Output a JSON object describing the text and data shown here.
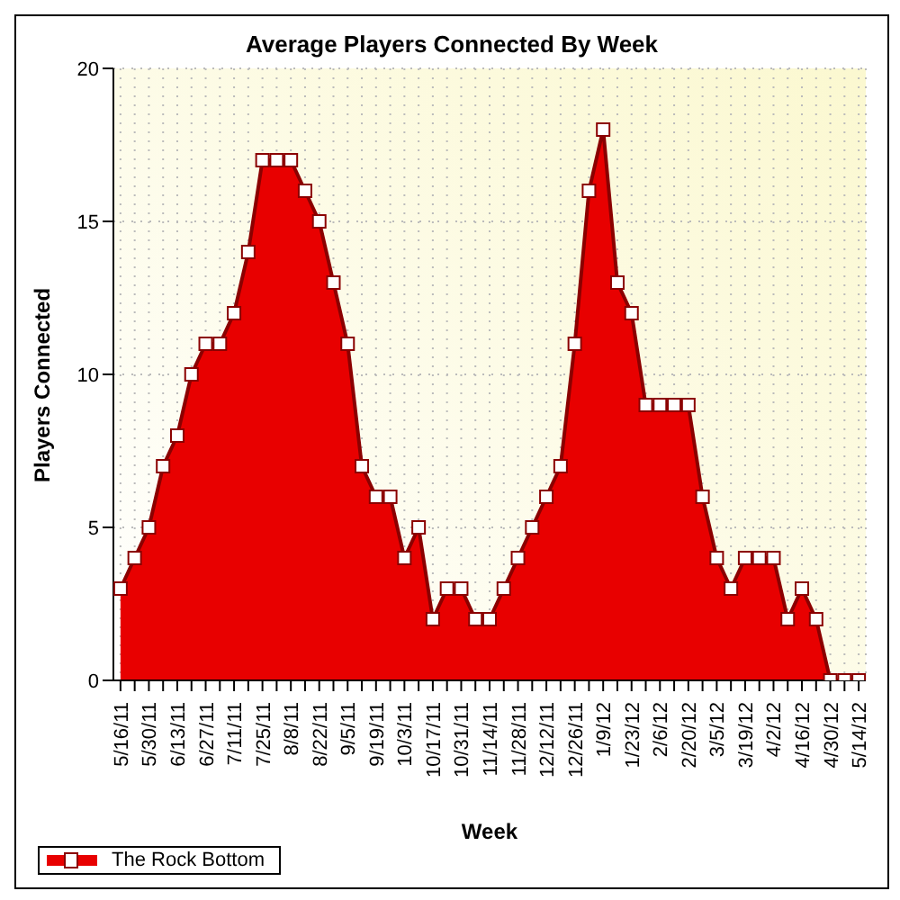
{
  "chart_data": {
    "type": "area",
    "title": "Average Players Connected By Week",
    "xlabel": "Week",
    "ylabel": "Players Connected",
    "categories": [
      "5/16/11",
      null,
      "5/30/11",
      null,
      "6/13/11",
      null,
      "6/27/11",
      null,
      "7/11/11",
      null,
      "7/25/11",
      null,
      "8/8/11",
      null,
      "8/22/11",
      null,
      "9/5/11",
      null,
      "9/19/11",
      null,
      "10/3/11",
      null,
      "10/17/11",
      null,
      "10/31/11",
      null,
      "11/14/11",
      null,
      "11/28/11",
      null,
      "12/12/11",
      null,
      "12/26/11",
      null,
      "1/9/12",
      null,
      "1/23/12",
      null,
      "2/6/12",
      null,
      "2/20/12",
      null,
      "3/5/12",
      null,
      "3/19/12",
      null,
      "4/2/12",
      null,
      "4/16/12",
      null,
      "4/30/12",
      null,
      "5/14/12"
    ],
    "series": [
      {
        "name": "The Rock Bottom",
        "color": "#e80000",
        "values": [
          3,
          4,
          5,
          7,
          8,
          10,
          11,
          11,
          12,
          14,
          17,
          17,
          17,
          16,
          15,
          13,
          11,
          7,
          6,
          6,
          4,
          5,
          2,
          3,
          3,
          2,
          2,
          3,
          4,
          5,
          6,
          7,
          11,
          16,
          18,
          13,
          12,
          9,
          9,
          9,
          9,
          6,
          4,
          3,
          4,
          4,
          4,
          2,
          3,
          2,
          0,
          0,
          0
        ]
      }
    ],
    "ylim": [
      0,
      20
    ],
    "yticks": [
      0,
      5,
      10,
      15,
      20
    ],
    "grid": true,
    "legend": "bottom left",
    "marker": "square",
    "line_style": "solid"
  }
}
